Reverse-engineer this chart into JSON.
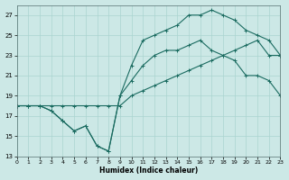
{
  "xlabel": "Humidex (Indice chaleur)",
  "bg_color": "#cce8e6",
  "grid_color": "#aad4d0",
  "line_color": "#1a6b60",
  "xlim": [
    0,
    23
  ],
  "ylim": [
    13,
    28
  ],
  "xticks": [
    0,
    1,
    2,
    3,
    4,
    5,
    6,
    7,
    8,
    9,
    10,
    11,
    12,
    13,
    14,
    15,
    16,
    17,
    18,
    19,
    20,
    21,
    22,
    23
  ],
  "yticks": [
    13,
    15,
    17,
    19,
    21,
    23,
    25,
    27
  ],
  "line1_x": [
    0,
    1,
    2,
    3,
    4,
    5,
    6,
    7,
    8,
    9,
    10,
    11,
    12,
    13,
    14,
    15,
    16,
    17,
    18,
    19,
    20,
    21,
    22,
    23
  ],
  "line1_y": [
    18,
    18,
    18,
    18,
    18,
    18,
    18,
    18,
    18,
    18,
    19,
    19.5,
    20,
    20.5,
    21,
    21.5,
    22,
    22.5,
    23,
    23.5,
    24,
    24.5,
    23,
    23
  ],
  "line2_x": [
    0,
    1,
    2,
    3,
    4,
    5,
    6,
    7,
    8,
    9,
    10,
    11,
    12,
    13,
    14,
    15,
    16,
    17,
    18,
    19,
    20,
    21,
    22,
    23
  ],
  "line2_y": [
    18,
    18,
    18,
    17.5,
    16.5,
    15.5,
    16,
    14,
    13.5,
    19,
    20.5,
    22,
    23,
    23.5,
    23.5,
    24,
    24.5,
    23.5,
    23,
    22.5,
    21,
    21,
    20.5,
    19
  ],
  "line3_x": [
    0,
    1,
    2,
    3,
    4,
    5,
    6,
    7,
    8,
    9,
    10,
    11,
    12,
    13,
    14,
    15,
    16,
    17,
    18,
    19,
    20,
    21,
    22,
    23
  ],
  "line3_y": [
    18,
    18,
    18,
    17.5,
    16.5,
    15.5,
    16,
    14,
    13.5,
    19,
    22,
    24.5,
    25,
    25.5,
    26,
    27,
    27,
    27.5,
    27,
    26.5,
    25.5,
    25,
    24.5,
    23
  ]
}
